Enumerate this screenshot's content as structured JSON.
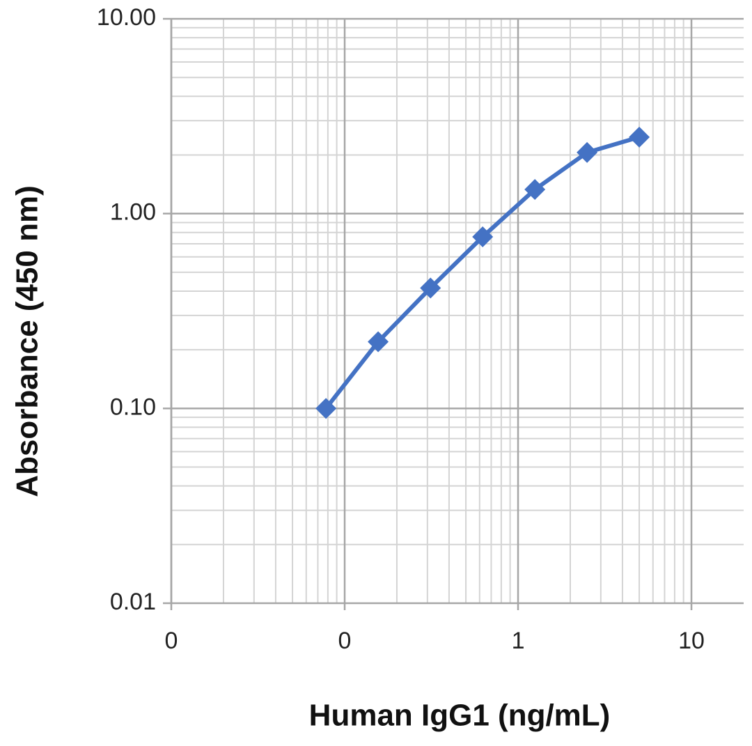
{
  "chart_data": {
    "type": "line",
    "x_label": "Human IgG1 (ng/mL)",
    "y_label": "Absorbance  (450 nm)",
    "x": [
      0.078,
      0.156,
      0.3125,
      0.625,
      1.25,
      2.5,
      5
    ],
    "values": [
      0.1,
      0.22,
      0.415,
      0.76,
      1.33,
      2.06,
      2.47
    ],
    "color": "#4472c4",
    "x_log": true,
    "y_log": true,
    "grid": true,
    "minor_grid": true,
    "xlim": [
      0.01,
      20
    ],
    "ylim": [
      0.01,
      10
    ],
    "xticks": [
      {
        "value": 0.01,
        "label": "0"
      },
      {
        "value": 0.1,
        "label": "0"
      },
      1,
      10
    ],
    "yticks": [
      {
        "value": 0.01,
        "label": "0.01"
      },
      {
        "value": 0.1,
        "label": "0.10"
      },
      {
        "value": 1,
        "label": "1.00"
      },
      {
        "value": 10,
        "label": "10.00"
      }
    ]
  }
}
